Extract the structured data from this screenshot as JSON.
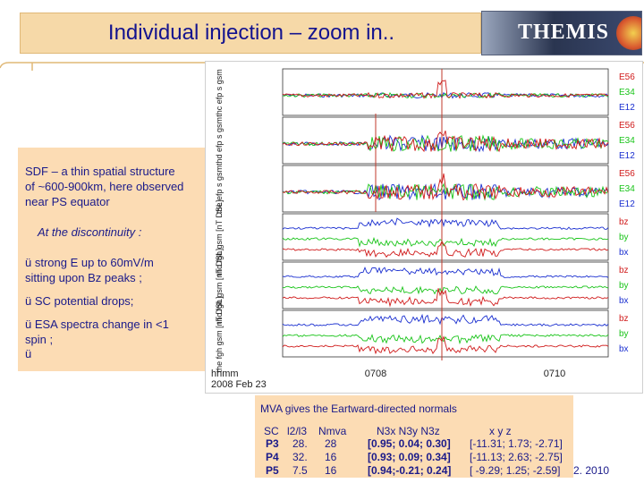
{
  "slide": {
    "title": "Individual injection – zoom in..",
    "logo_text": "THEMIS",
    "footer_fragment": "2. 2010"
  },
  "text_panel": {
    "line1": "SDF – a thin spatial structure",
    "line2": "of ~600-900km, here observed",
    "line3": "near PS equator",
    "line4": "At the discontinuity :",
    "bullet1_line1": "ü  strong E up to 60mV/m",
    "bullet1_line2": "sitting upon Bz peaks ;",
    "bullet2": "ü SC potential drops;",
    "bullet3_line1": "ü ESA spectra change in <1",
    "bullet3_line2": "spin ;",
    "bullet4": "ü"
  },
  "figure": {
    "panels": [
      {
        "label": "thc efp s gsm",
        "legend": [
          "E56",
          "E34",
          "E12"
        ]
      },
      {
        "label": "thd efp s gsm",
        "legend": [
          "E56",
          "E34",
          "E12"
        ]
      },
      {
        "label": "the efp s gsm",
        "legend": [
          "E56",
          "E34",
          "E12"
        ]
      },
      {
        "label": "thd fgh gsm [nT DSL]",
        "legend": [
          "bz",
          "by",
          "bx"
        ]
      },
      {
        "label": "thc fgh gsm [nT DSL]",
        "legend": [
          "bz",
          "by",
          "bx"
        ]
      },
      {
        "label": "the fgh gsm [nT DSL]",
        "legend": [
          "bz",
          "by",
          "bx"
        ]
      }
    ],
    "xtick_labels": [
      "0708",
      "0710"
    ],
    "time_axis_label": "hhmm",
    "date_label": "2008 Feb 23"
  },
  "mva": {
    "title": "MVA gives the Eartward-directed normals",
    "headers": [
      "SC",
      "l2/l3",
      "Nmva",
      "N3x  N3y  N3z",
      "x    y    z"
    ],
    "rows": [
      {
        "sc": "P3",
        "ratio": "28.",
        "nmva": "28",
        "normal": "[0.95; 0.04; 0.30]",
        "position": "[-11.31; 1.73; -2.71]"
      },
      {
        "sc": "P4",
        "ratio": "32.",
        "nmva": "16",
        "normal": "[0.93; 0.09; 0.34]",
        "position": "[-11.13; 2.63; -2.75]"
      },
      {
        "sc": "P5",
        "ratio": "7.5",
        "nmva": "16",
        "normal": "[0.94;-0.21; 0.24]",
        "position": "[ -9.29; 1.25; -2.59]"
      }
    ]
  },
  "colors": {
    "title_text": "#13138f",
    "panel_bg": "#fcdcb4",
    "trace_blue": "#1a2fd0",
    "trace_green": "#19c419",
    "trace_red": "#d01a1a",
    "event_line": "#c0392b"
  }
}
